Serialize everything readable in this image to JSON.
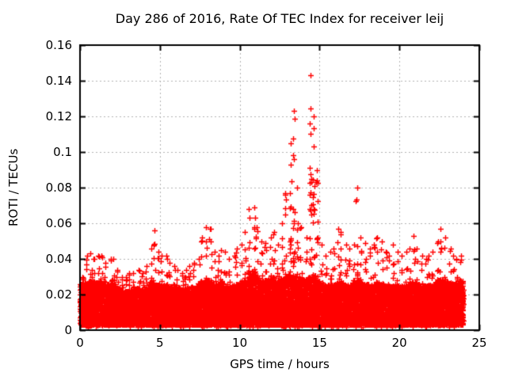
{
  "chart_data": {
    "type": "scatter",
    "title": "Day 286 of 2016, Rate Of TEC Index for receiver leij",
    "xlabel": "GPS time / hours",
    "ylabel": "ROTI / TECUs",
    "xlim": [
      0,
      25
    ],
    "ylim": [
      0,
      0.16
    ],
    "xticks": [
      0,
      5,
      10,
      15,
      20,
      25
    ],
    "xtick_labels": [
      "0",
      "5",
      "10",
      "15",
      "20",
      "25"
    ],
    "yticks": [
      0,
      0.02,
      0.04,
      0.06,
      0.08,
      0.1,
      0.12,
      0.14,
      0.16
    ],
    "ytick_labels": [
      "0",
      "0.02",
      "0.04",
      "0.06",
      "0.08",
      "0.1",
      "0.12",
      "0.14",
      "0.16"
    ],
    "grid": {
      "show": true,
      "style": "dashed",
      "color": "#b0b0b0"
    },
    "legend": "none",
    "marker": "plus",
    "marker_color": "#ff0000",
    "axis_color": "#000000",
    "background_color": "#ffffff",
    "data_start_hour": 0,
    "data_end_hour": 24,
    "max_point": {
      "hour": 14.3,
      "roti": 0.143
    },
    "series": [
      {
        "name": "ROTI",
        "description": "Dense band of + markers 0.003-0.03 TECUs across 0-24 h with spikes; bins give [dense_band_top, spike_max] per 0.25 h",
        "band_bottom": 0.003,
        "bin_start_hour": 0,
        "bin_step_hours": 0.25,
        "bins": [
          [
            0.026,
            0.03
          ],
          [
            0.027,
            0.042
          ],
          [
            0.028,
            0.043
          ],
          [
            0.027,
            0.04
          ],
          [
            0.027,
            0.042
          ],
          [
            0.028,
            0.042
          ],
          [
            0.026,
            0.038
          ],
          [
            0.026,
            0.04
          ],
          [
            0.026,
            0.04
          ],
          [
            0.024,
            0.034
          ],
          [
            0.022,
            0.03
          ],
          [
            0.022,
            0.03
          ],
          [
            0.023,
            0.032
          ],
          [
            0.023,
            0.032
          ],
          [
            0.024,
            0.034
          ],
          [
            0.023,
            0.032
          ],
          [
            0.024,
            0.036
          ],
          [
            0.027,
            0.046
          ],
          [
            0.028,
            0.056
          ],
          [
            0.026,
            0.044
          ],
          [
            0.025,
            0.042
          ],
          [
            0.026,
            0.042
          ],
          [
            0.025,
            0.038
          ],
          [
            0.024,
            0.036
          ],
          [
            0.024,
            0.034
          ],
          [
            0.023,
            0.032
          ],
          [
            0.024,
            0.034
          ],
          [
            0.024,
            0.036
          ],
          [
            0.025,
            0.038
          ],
          [
            0.025,
            0.04
          ],
          [
            0.027,
            0.052
          ],
          [
            0.028,
            0.058
          ],
          [
            0.028,
            0.057
          ],
          [
            0.026,
            0.044
          ],
          [
            0.026,
            0.042
          ],
          [
            0.027,
            0.045
          ],
          [
            0.026,
            0.044
          ],
          [
            0.025,
            0.04
          ],
          [
            0.025,
            0.042
          ],
          [
            0.026,
            0.046
          ],
          [
            0.027,
            0.048
          ],
          [
            0.028,
            0.055
          ],
          [
            0.032,
            0.068
          ],
          [
            0.033,
            0.069
          ],
          [
            0.03,
            0.058
          ],
          [
            0.028,
            0.05
          ],
          [
            0.028,
            0.049
          ],
          [
            0.029,
            0.052
          ],
          [
            0.03,
            0.055
          ],
          [
            0.028,
            0.048
          ],
          [
            0.029,
            0.06
          ],
          [
            0.03,
            0.077
          ],
          [
            0.031,
            0.105
          ],
          [
            0.032,
            0.123
          ],
          [
            0.03,
            0.08
          ],
          [
            0.029,
            0.058
          ],
          [
            0.028,
            0.052
          ],
          [
            0.03,
            0.143
          ],
          [
            0.031,
            0.12
          ],
          [
            0.028,
            0.09
          ],
          [
            0.026,
            0.048
          ],
          [
            0.025,
            0.042
          ],
          [
            0.026,
            0.044
          ],
          [
            0.026,
            0.046
          ],
          [
            0.027,
            0.057
          ],
          [
            0.027,
            0.055
          ],
          [
            0.026,
            0.048
          ],
          [
            0.026,
            0.046
          ],
          [
            0.027,
            0.048
          ],
          [
            0.028,
            0.08
          ],
          [
            0.027,
            0.052
          ],
          [
            0.026,
            0.049
          ],
          [
            0.026,
            0.046
          ],
          [
            0.026,
            0.048
          ],
          [
            0.027,
            0.052
          ],
          [
            0.026,
            0.05
          ],
          [
            0.025,
            0.044
          ],
          [
            0.025,
            0.042
          ],
          [
            0.026,
            0.048
          ],
          [
            0.025,
            0.044
          ],
          [
            0.025,
            0.042
          ],
          [
            0.026,
            0.044
          ],
          [
            0.026,
            0.046
          ],
          [
            0.027,
            0.053
          ],
          [
            0.026,
            0.046
          ],
          [
            0.025,
            0.042
          ],
          [
            0.025,
            0.04
          ],
          [
            0.026,
            0.042
          ],
          [
            0.026,
            0.044
          ],
          [
            0.028,
            0.05
          ],
          [
            0.029,
            0.057
          ],
          [
            0.028,
            0.052
          ],
          [
            0.027,
            0.046
          ],
          [
            0.026,
            0.042
          ],
          [
            0.027,
            0.04
          ],
          [
            0.028,
            0.042
          ]
        ]
      }
    ]
  }
}
